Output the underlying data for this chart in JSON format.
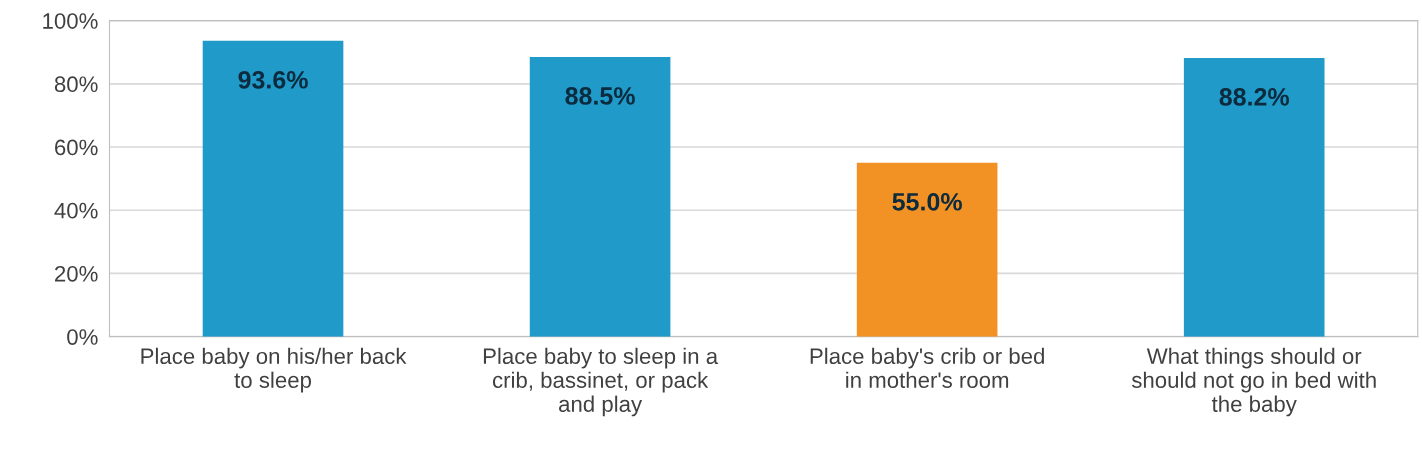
{
  "chart_data": {
    "type": "bar",
    "categories": [
      "Place baby on his/her back to sleep",
      "Place baby to sleep in a crib, bassinet, or pack and play",
      "Place baby's crib or bed in mother's room",
      "What things should or should not go in bed with the baby"
    ],
    "values": [
      93.6,
      88.5,
      55.0,
      88.2
    ],
    "colors": [
      "#1f9ac9",
      "#1f9ac9",
      "#f39224",
      "#1f9ac9"
    ],
    "value_labels": [
      "93.6%",
      "88.5%",
      "55.0%",
      "88.2%"
    ],
    "ylim": [
      0,
      100
    ],
    "yticks": [
      {
        "value": 0,
        "label": "0%"
      },
      {
        "value": 20,
        "label": "20%"
      },
      {
        "value": 40,
        "label": "40%"
      },
      {
        "value": 60,
        "label": "60%"
      },
      {
        "value": 80,
        "label": "80%"
      },
      {
        "value": 100,
        "label": "100%"
      }
    ],
    "grid": "y",
    "legend": false
  }
}
